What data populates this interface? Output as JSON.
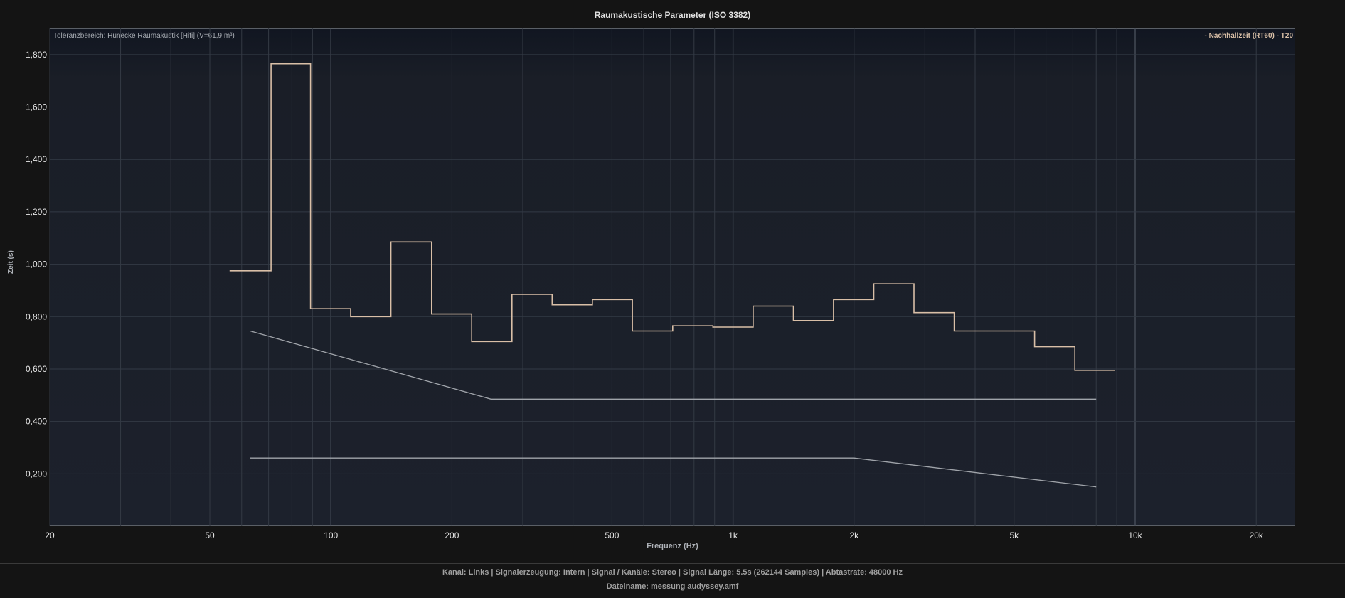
{
  "chart_data": {
    "type": "line",
    "title": "Raumakustische Parameter (ISO 3382)",
    "xlabel": "Frequenz (Hz)",
    "ylabel": "Zeit (s)",
    "x_scale": "log",
    "xlim": [
      20,
      25000
    ],
    "ylim": [
      0,
      1.9
    ],
    "grid": true,
    "legend_position": "top-right",
    "tolerance_label": "Toleranzbereich: Hunecke Raumakustik [Hifi] (V=61,9 m³)",
    "x_ticks": [
      {
        "value": 20,
        "label": "20"
      },
      {
        "value": 50,
        "label": "50"
      },
      {
        "value": 100,
        "label": "100"
      },
      {
        "value": 200,
        "label": "200"
      },
      {
        "value": 500,
        "label": "500"
      },
      {
        "value": 1000,
        "label": "1k"
      },
      {
        "value": 2000,
        "label": "2k"
      },
      {
        "value": 5000,
        "label": "5k"
      },
      {
        "value": 10000,
        "label": "10k"
      },
      {
        "value": 20000,
        "label": "20k"
      }
    ],
    "y_ticks": [
      {
        "value": 0.2,
        "label": "0,200"
      },
      {
        "value": 0.4,
        "label": "0,400"
      },
      {
        "value": 0.6,
        "label": "0,600"
      },
      {
        "value": 0.8,
        "label": "0,800"
      },
      {
        "value": 1.0,
        "label": "1,000"
      },
      {
        "value": 1.2,
        "label": "1,200"
      },
      {
        "value": 1.4,
        "label": "1,400"
      },
      {
        "value": 1.6,
        "label": "1,600"
      },
      {
        "value": 1.8,
        "label": "1,800"
      }
    ],
    "series": [
      {
        "name": "- Nachhallzeit (RT60) - T20",
        "kind": "step",
        "color": "#d9bfa7",
        "bands": [
          {
            "lo": 56,
            "hi": 71,
            "value": 0.975
          },
          {
            "lo": 71,
            "hi": 89,
            "value": 1.765
          },
          {
            "lo": 89,
            "hi": 112,
            "value": 0.83
          },
          {
            "lo": 112,
            "hi": 141,
            "value": 0.8
          },
          {
            "lo": 141,
            "hi": 178,
            "value": 1.085
          },
          {
            "lo": 178,
            "hi": 224,
            "value": 0.81
          },
          {
            "lo": 224,
            "hi": 282,
            "value": 0.705
          },
          {
            "lo": 282,
            "hi": 355,
            "value": 0.885
          },
          {
            "lo": 355,
            "hi": 447,
            "value": 0.845
          },
          {
            "lo": 447,
            "hi": 562,
            "value": 0.865
          },
          {
            "lo": 562,
            "hi": 708,
            "value": 0.745
          },
          {
            "lo": 708,
            "hi": 891,
            "value": 0.765
          },
          {
            "lo": 891,
            "hi": 1122,
            "value": 0.76
          },
          {
            "lo": 1122,
            "hi": 1413,
            "value": 0.84
          },
          {
            "lo": 1413,
            "hi": 1778,
            "value": 0.785
          },
          {
            "lo": 1778,
            "hi": 2239,
            "value": 0.865
          },
          {
            "lo": 2239,
            "hi": 2818,
            "value": 0.925
          },
          {
            "lo": 2818,
            "hi": 3548,
            "value": 0.815
          },
          {
            "lo": 3548,
            "hi": 4467,
            "value": 0.745
          },
          {
            "lo": 4467,
            "hi": 5623,
            "value": 0.745
          },
          {
            "lo": 5623,
            "hi": 7079,
            "value": 0.685
          },
          {
            "lo": 7079,
            "hi": 8913,
            "value": 0.595
          }
        ]
      },
      {
        "name": "",
        "kind": "line",
        "color": "#a0a4aa",
        "points": [
          [
            63,
            0.745
          ],
          [
            250,
            0.485
          ],
          [
            8000,
            0.485
          ]
        ]
      },
      {
        "name": "",
        "kind": "line",
        "color": "#a0a4aa",
        "points": [
          [
            63,
            0.26
          ],
          [
            2000,
            0.26
          ],
          [
            8000,
            0.15
          ]
        ]
      }
    ]
  },
  "footer": {
    "info": "Kanal: Links  |  Signalerzeugung: Intern  |  Signal / Kanäle: Stereo  |  Signal Länge: 5.5s (262144 Samples)  |  Abtastrate: 48000 Hz",
    "filename": "Dateiname: messung audyssey.amf"
  }
}
